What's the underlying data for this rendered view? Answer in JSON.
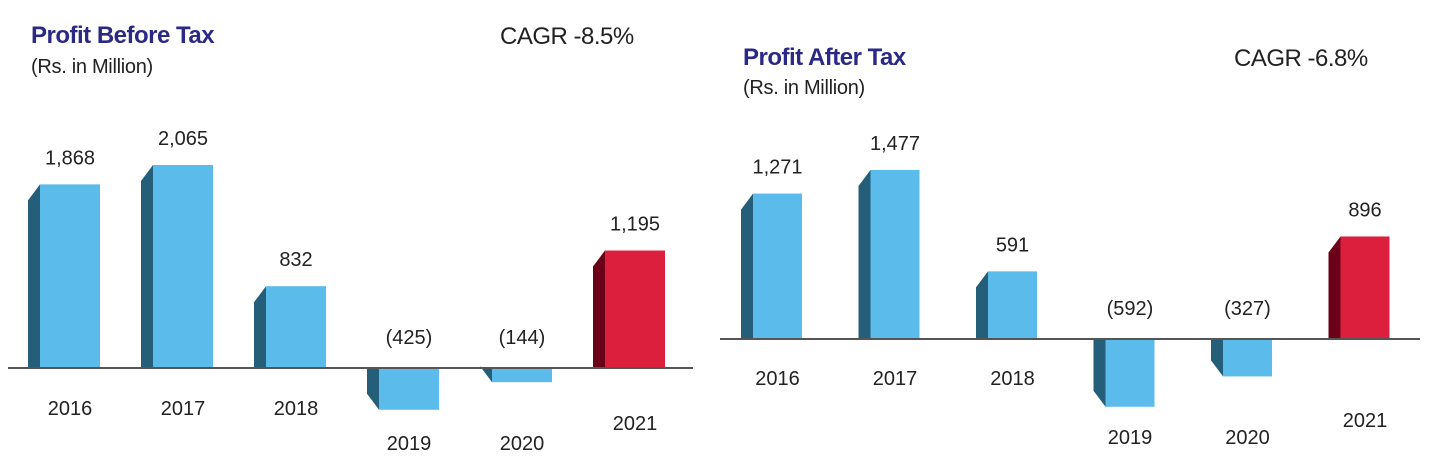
{
  "chart_data": [
    {
      "type": "bar",
      "title": "Profit Before Tax",
      "subtitle": "(Rs. in Million)",
      "annotation": "CAGR -8.5%",
      "categories": [
        "2016",
        "2017",
        "2018",
        "2019",
        "2020",
        "2021"
      ],
      "values": [
        1868,
        2065,
        832,
        -425,
        -144,
        1195
      ],
      "labels": [
        "1,868",
        "2,065",
        "832",
        "(425)",
        "(144)",
        "1,195"
      ],
      "highlight_index": 5,
      "xlabel": "",
      "ylabel": "",
      "grid": false,
      "legend": "none"
    },
    {
      "type": "bar",
      "title": "Profit After Tax",
      "subtitle": "(Rs. in Million)",
      "annotation": "CAGR -6.8%",
      "categories": [
        "2016",
        "2017",
        "2018",
        "2019",
        "2020",
        "2021"
      ],
      "values": [
        1271,
        1477,
        591,
        -592,
        -327,
        896
      ],
      "labels": [
        "1,271",
        "1,477",
        "591",
        "(592)",
        "(327)",
        "896"
      ],
      "highlight_index": 5,
      "xlabel": "",
      "ylabel": "",
      "grid": false,
      "legend": "none"
    }
  ],
  "colors": {
    "bar_front": "#5bbbea",
    "bar_side": "#245e78",
    "highlight_front": "#dc1f3c",
    "highlight_side": "#6b0019",
    "title": "#2a2a86",
    "axis": "#555555"
  }
}
